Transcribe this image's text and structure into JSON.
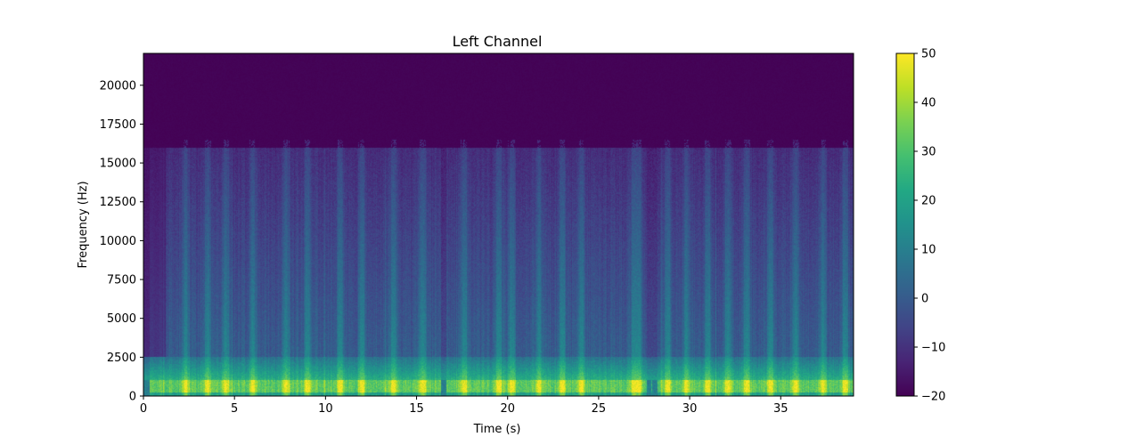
{
  "chart_data": {
    "type": "heatmap",
    "title": "Left Channel",
    "xlabel": "Time (s)",
    "ylabel": "Frequency (Hz)",
    "xlim": [
      0,
      39
    ],
    "ylim": [
      0,
      22050
    ],
    "x_ticks": [
      0,
      5,
      10,
      15,
      20,
      25,
      30,
      35
    ],
    "x_tick_labels": [
      "0",
      "5",
      "10",
      "15",
      "20",
      "25",
      "30",
      "35"
    ],
    "y_ticks": [
      0,
      2500,
      5000,
      7500,
      10000,
      12500,
      15000,
      17500,
      20000
    ],
    "y_tick_labels": [
      "0",
      "2500",
      "5000",
      "7500",
      "10000",
      "12500",
      "15000",
      "17500",
      "20000"
    ],
    "colormap": "viridis",
    "colorbar": {
      "range": [
        -20,
        50
      ],
      "ticks": [
        -20,
        -10,
        0,
        10,
        20,
        30,
        40,
        50
      ],
      "tick_labels": [
        "−20",
        "−10",
        "0",
        "10",
        "20",
        "30",
        "40",
        "50"
      ]
    },
    "energy_cutoff_hz": 16000,
    "gaps_s": [
      [
        0,
        0.3
      ],
      [
        16.3,
        16.6
      ],
      [
        27.6,
        28.2
      ]
    ],
    "loud_bursts_s": [
      2.3,
      3.5,
      4.5,
      6.0,
      7.8,
      9.0,
      10.8,
      12.0,
      13.7,
      15.3,
      17.6,
      19.5,
      20.2,
      21.7,
      23.0,
      24.0,
      26.9,
      27.2,
      28.8,
      29.8,
      31.0,
      32.1,
      33.1,
      34.4,
      35.8,
      37.3,
      38.5
    ],
    "grid": false
  }
}
